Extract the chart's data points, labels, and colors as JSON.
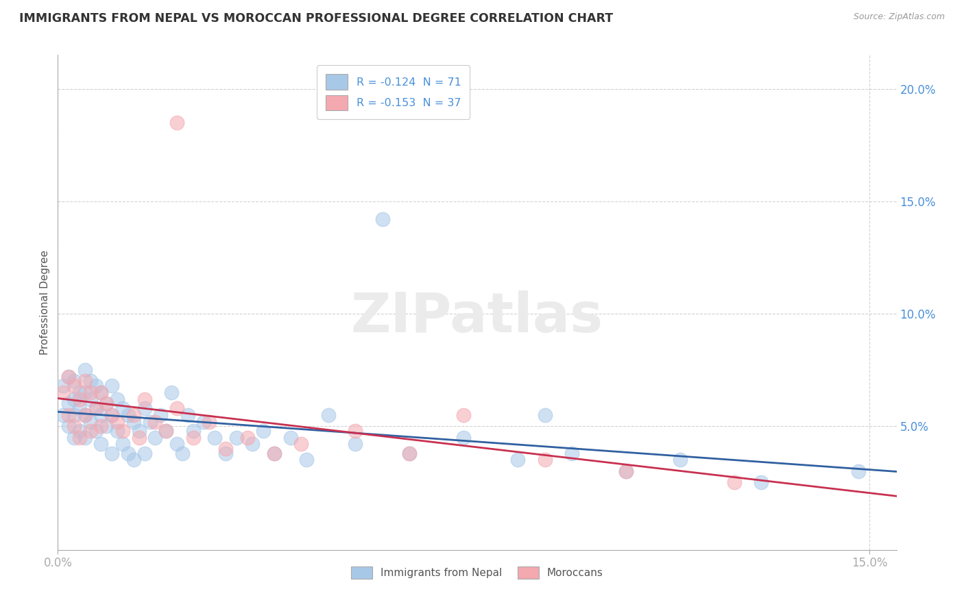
{
  "title": "IMMIGRANTS FROM NEPAL VS MOROCCAN PROFESSIONAL DEGREE CORRELATION CHART",
  "source": "Source: ZipAtlas.com",
  "ylabel": "Professional Degree",
  "xlim": [
    0.0,
    0.155
  ],
  "ylim": [
    -0.005,
    0.215
  ],
  "legend1_label": "R = -0.124  N = 71",
  "legend2_label": "R = -0.153  N = 37",
  "series1_color": "#a8c8e8",
  "series2_color": "#f4a8b0",
  "line1_color": "#3060a0",
  "line2_color": "#c83050",
  "watermark": "ZIPatlas",
  "nepal_x": [
    0.001,
    0.001,
    0.002,
    0.002,
    0.002,
    0.003,
    0.003,
    0.003,
    0.003,
    0.004,
    0.004,
    0.004,
    0.005,
    0.005,
    0.005,
    0.005,
    0.006,
    0.006,
    0.006,
    0.007,
    0.007,
    0.007,
    0.008,
    0.008,
    0.008,
    0.009,
    0.009,
    0.01,
    0.01,
    0.01,
    0.011,
    0.011,
    0.012,
    0.012,
    0.013,
    0.013,
    0.014,
    0.014,
    0.015,
    0.016,
    0.016,
    0.017,
    0.018,
    0.019,
    0.02,
    0.021,
    0.022,
    0.023,
    0.024,
    0.025,
    0.027,
    0.029,
    0.031,
    0.033,
    0.036,
    0.038,
    0.04,
    0.043,
    0.046,
    0.05,
    0.055,
    0.06,
    0.065,
    0.075,
    0.085,
    0.09,
    0.095,
    0.105,
    0.115,
    0.13,
    0.148
  ],
  "nepal_y": [
    0.068,
    0.055,
    0.072,
    0.06,
    0.05,
    0.07,
    0.062,
    0.055,
    0.045,
    0.065,
    0.058,
    0.048,
    0.075,
    0.065,
    0.055,
    0.045,
    0.07,
    0.062,
    0.052,
    0.068,
    0.058,
    0.048,
    0.065,
    0.055,
    0.042,
    0.06,
    0.05,
    0.068,
    0.055,
    0.038,
    0.062,
    0.048,
    0.058,
    0.042,
    0.055,
    0.038,
    0.052,
    0.035,
    0.048,
    0.058,
    0.038,
    0.052,
    0.045,
    0.055,
    0.048,
    0.065,
    0.042,
    0.038,
    0.055,
    0.048,
    0.052,
    0.045,
    0.038,
    0.045,
    0.042,
    0.048,
    0.038,
    0.045,
    0.035,
    0.055,
    0.042,
    0.142,
    0.038,
    0.045,
    0.035,
    0.055,
    0.038,
    0.03,
    0.035,
    0.025,
    0.03
  ],
  "morocco_x": [
    0.001,
    0.002,
    0.002,
    0.003,
    0.003,
    0.004,
    0.004,
    0.005,
    0.005,
    0.006,
    0.006,
    0.007,
    0.008,
    0.008,
    0.009,
    0.01,
    0.011,
    0.012,
    0.014,
    0.015,
    0.016,
    0.018,
    0.02,
    0.022,
    0.025,
    0.028,
    0.031,
    0.035,
    0.04,
    0.045,
    0.055,
    0.065,
    0.075,
    0.09,
    0.105,
    0.125,
    0.022
  ],
  "morocco_y": [
    0.065,
    0.072,
    0.055,
    0.068,
    0.05,
    0.062,
    0.045,
    0.07,
    0.055,
    0.065,
    0.048,
    0.058,
    0.065,
    0.05,
    0.06,
    0.055,
    0.052,
    0.048,
    0.055,
    0.045,
    0.062,
    0.052,
    0.048,
    0.058,
    0.045,
    0.052,
    0.04,
    0.045,
    0.038,
    0.042,
    0.048,
    0.038,
    0.055,
    0.035,
    0.03,
    0.025,
    0.185
  ]
}
